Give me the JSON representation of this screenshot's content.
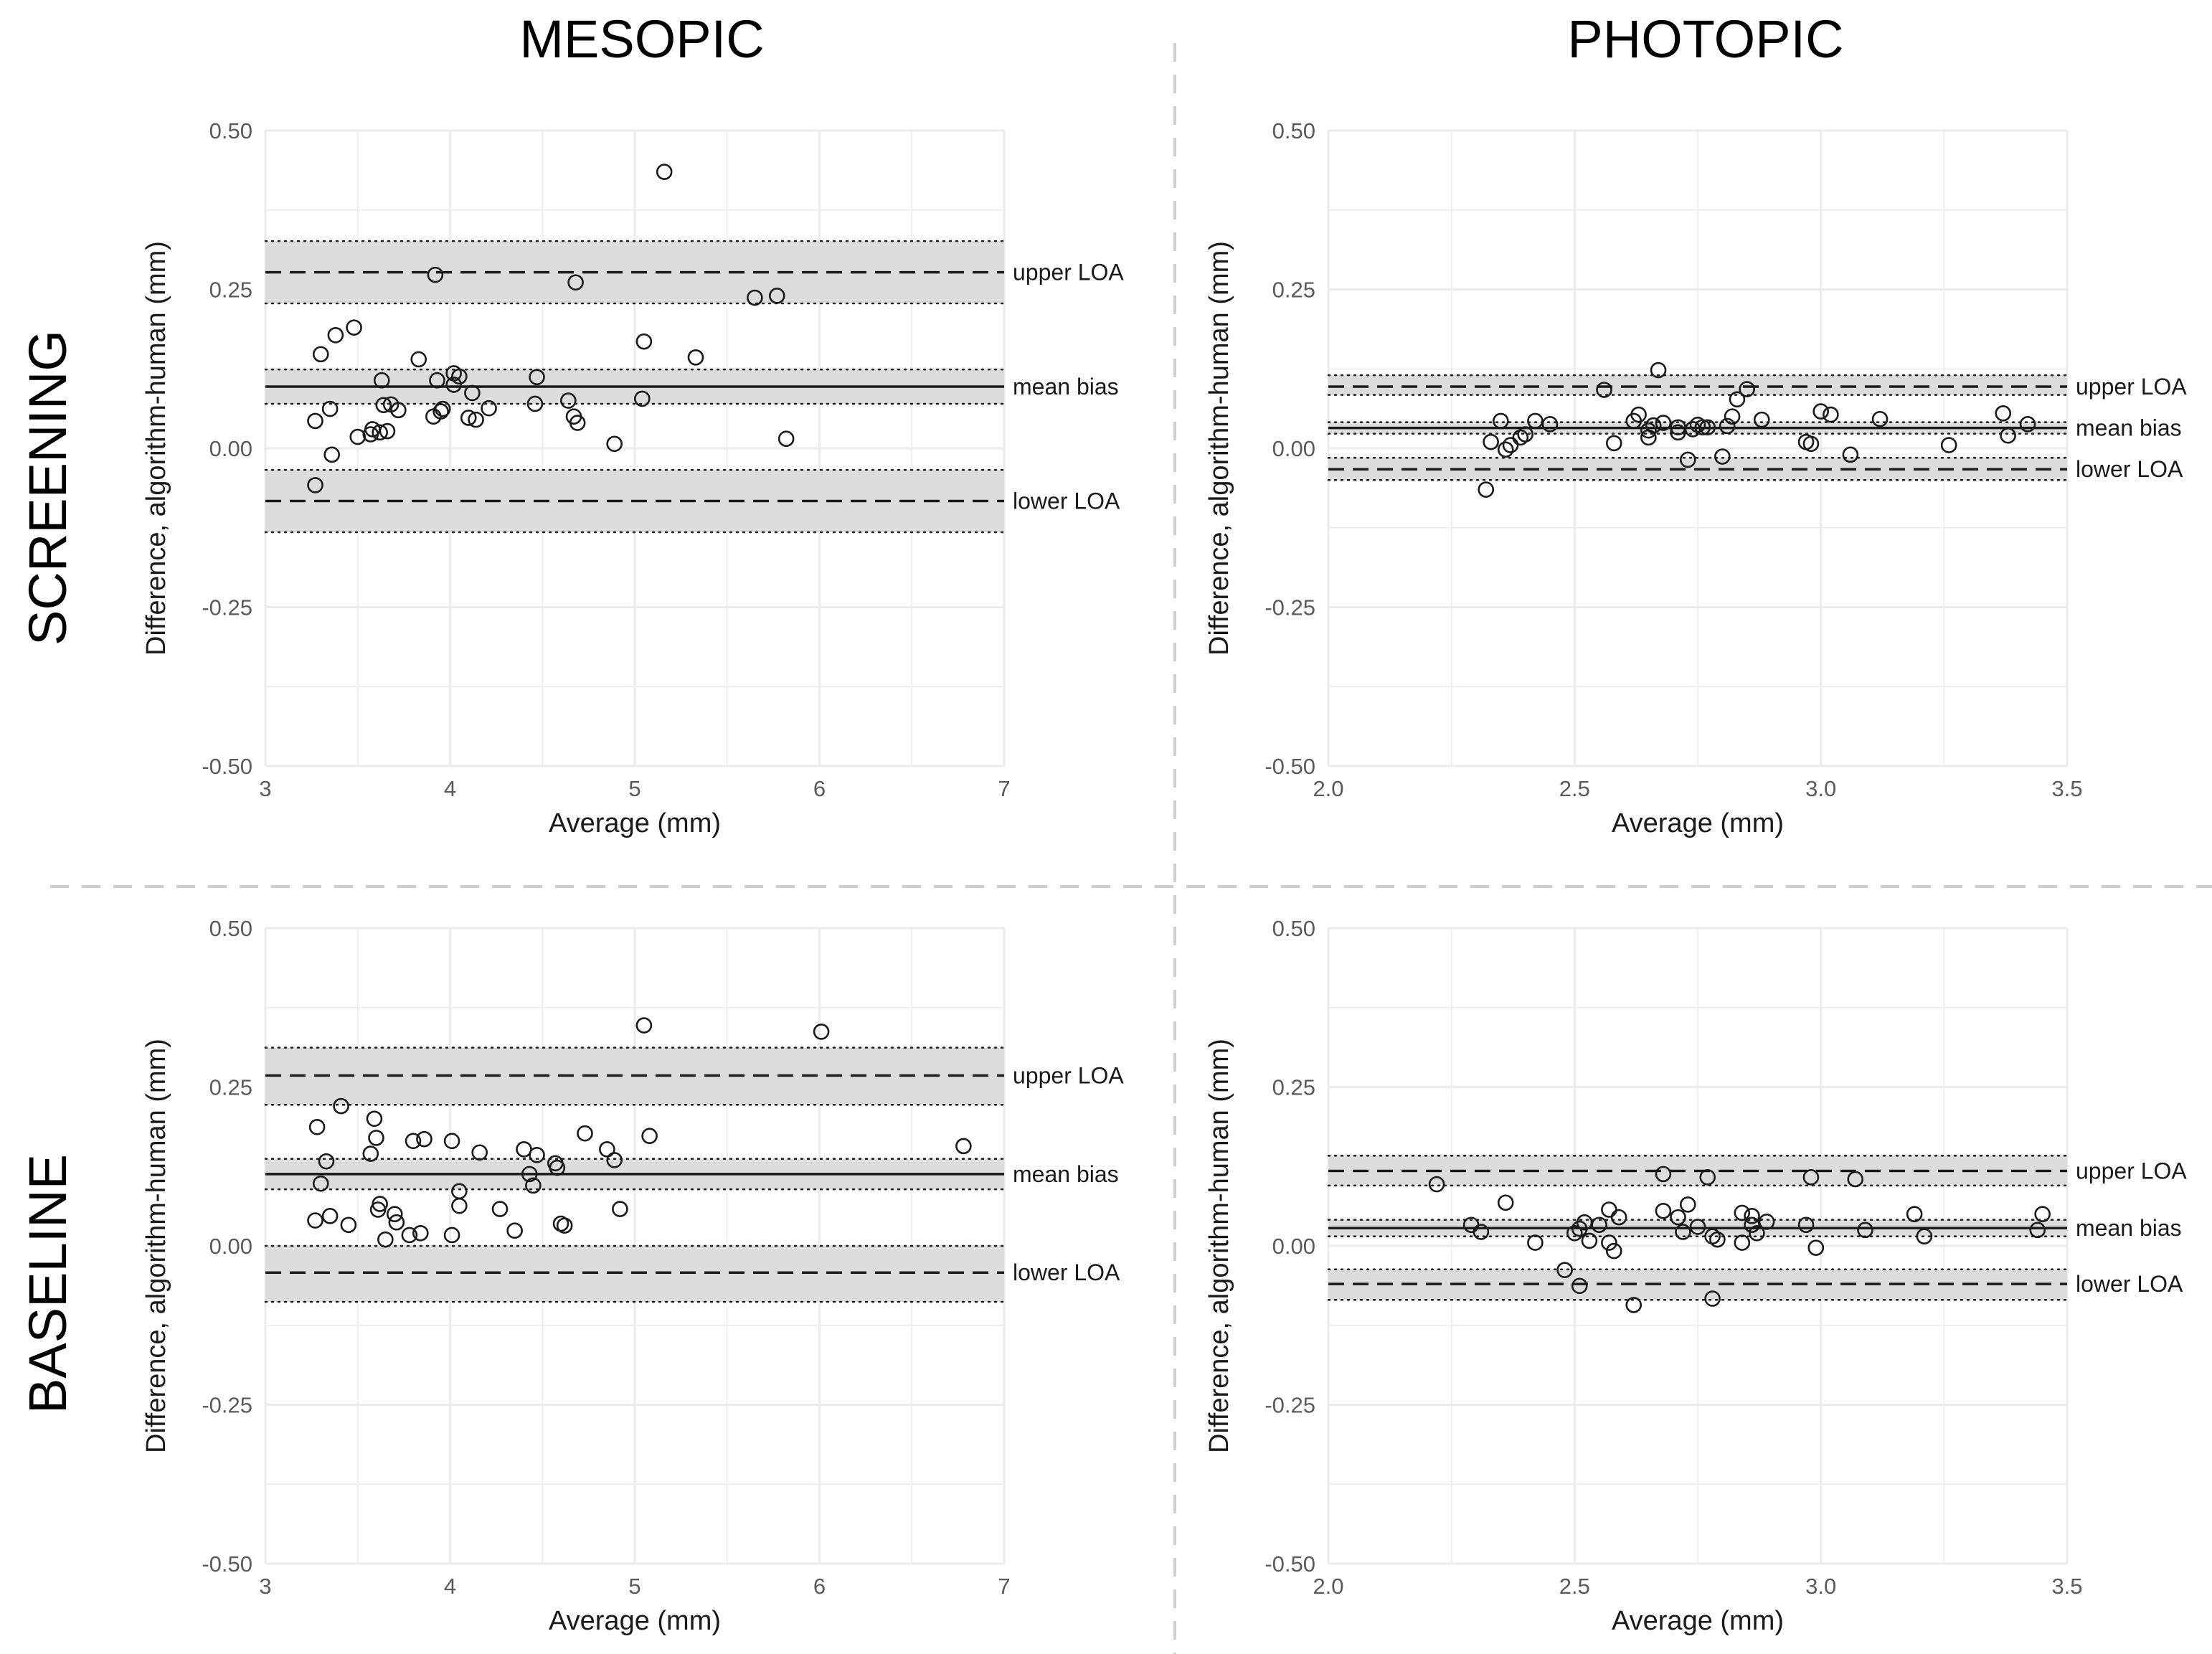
{
  "column_titles": [
    "MESOPIC",
    "PHOTOPIC"
  ],
  "row_titles": [
    "SCREENING",
    "BASELINE"
  ],
  "colors": {
    "background": "#ffffff",
    "grid": "#ebebeb",
    "band": "#dcdcdc",
    "line": "#1a1a1a",
    "separator": "#cfcfcf"
  },
  "chart_data": [
    {
      "id": "screening-mesopic",
      "type": "scatter",
      "row": "SCREENING",
      "column": "MESOPIC",
      "xlabel": "Average (mm)",
      "ylabel": "Difference, algorithm-human (mm)",
      "xlim": [
        3,
        7
      ],
      "ylim": [
        -0.5,
        0.5
      ],
      "xticks": [
        3,
        4,
        5,
        6,
        7
      ],
      "xtick_labels": [
        "3",
        "4",
        "5",
        "6",
        "7"
      ],
      "yticks": [
        -0.5,
        -0.25,
        0,
        0.25,
        0.5
      ],
      "ytick_labels": [
        "-0.50",
        "-0.25",
        "0.00",
        "0.25",
        "0.50"
      ],
      "lines": {
        "upper_loa": {
          "label": "upper LOA",
          "value": 0.277,
          "ci": [
            0.228,
            0.326
          ]
        },
        "mean_bias": {
          "label": "mean bias",
          "value": 0.097,
          "ci": [
            0.07,
            0.124
          ]
        },
        "lower_loa": {
          "label": "lower LOA",
          "value": -0.083,
          "ci": [
            -0.132,
            -0.034
          ]
        }
      },
      "points": [
        [
          3.27,
          0.043
        ],
        [
          3.27,
          -0.058
        ],
        [
          3.3,
          0.148
        ],
        [
          3.35,
          0.062
        ],
        [
          3.36,
          -0.01
        ],
        [
          3.38,
          0.178
        ],
        [
          3.48,
          0.19
        ],
        [
          3.5,
          0.018
        ],
        [
          3.57,
          0.022
        ],
        [
          3.58,
          0.03
        ],
        [
          3.62,
          0.025
        ],
        [
          3.63,
          0.107
        ],
        [
          3.64,
          0.068
        ],
        [
          3.66,
          0.027
        ],
        [
          3.68,
          0.069
        ],
        [
          3.72,
          0.06
        ],
        [
          3.83,
          0.14
        ],
        [
          3.91,
          0.05
        ],
        [
          3.92,
          0.273
        ],
        [
          3.93,
          0.107
        ],
        [
          3.95,
          0.058
        ],
        [
          3.96,
          0.062
        ],
        [
          4.02,
          0.1
        ],
        [
          4.02,
          0.118
        ],
        [
          4.05,
          0.113
        ],
        [
          4.1,
          0.048
        ],
        [
          4.12,
          0.087
        ],
        [
          4.14,
          0.045
        ],
        [
          4.21,
          0.063
        ],
        [
          4.46,
          0.07
        ],
        [
          4.47,
          0.112
        ],
        [
          4.64,
          0.075
        ],
        [
          4.67,
          0.05
        ],
        [
          4.68,
          0.261
        ],
        [
          4.69,
          0.04
        ],
        [
          4.89,
          0.007
        ],
        [
          5.04,
          0.078
        ],
        [
          5.05,
          0.168
        ],
        [
          5.16,
          0.435
        ],
        [
          5.33,
          0.143
        ],
        [
          5.65,
          0.237
        ],
        [
          5.77,
          0.24
        ],
        [
          5.82,
          0.015
        ]
      ]
    },
    {
      "id": "screening-photopic",
      "type": "scatter",
      "row": "SCREENING",
      "column": "PHOTOPIC",
      "xlabel": "Average (mm)",
      "ylabel": "Difference, algorithm-human (mm)",
      "xlim": [
        2.0,
        3.5
      ],
      "ylim": [
        -0.5,
        0.5
      ],
      "xticks": [
        2.0,
        2.5,
        3.0,
        3.5
      ],
      "xtick_labels": [
        "2.0",
        "2.5",
        "3.0",
        "3.5"
      ],
      "yticks": [
        -0.5,
        -0.25,
        0,
        0.25,
        0.5
      ],
      "ytick_labels": [
        "-0.50",
        "-0.25",
        "0.00",
        "0.25",
        "0.50"
      ],
      "lines": {
        "upper_loa": {
          "label": "upper LOA",
          "value": 0.097,
          "ci": [
            0.084,
            0.115
          ]
        },
        "mean_bias": {
          "label": "mean bias",
          "value": 0.032,
          "ci": [
            0.023,
            0.041
          ]
        },
        "lower_loa": {
          "label": "lower LOA",
          "value": -0.033,
          "ci": [
            -0.05,
            -0.015
          ]
        }
      },
      "points": [
        [
          2.32,
          -0.065
        ],
        [
          2.33,
          0.01
        ],
        [
          2.35,
          0.043
        ],
        [
          2.36,
          -0.002
        ],
        [
          2.37,
          0.005
        ],
        [
          2.39,
          0.017
        ],
        [
          2.4,
          0.022
        ],
        [
          2.42,
          0.043
        ],
        [
          2.45,
          0.038
        ],
        [
          2.56,
          0.092
        ],
        [
          2.58,
          0.008
        ],
        [
          2.62,
          0.043
        ],
        [
          2.63,
          0.053
        ],
        [
          2.65,
          0.017
        ],
        [
          2.65,
          0.028
        ],
        [
          2.66,
          0.036
        ],
        [
          2.67,
          0.123
        ],
        [
          2.68,
          0.04
        ],
        [
          2.71,
          0.033
        ],
        [
          2.71,
          0.025
        ],
        [
          2.73,
          -0.018
        ],
        [
          2.74,
          0.03
        ],
        [
          2.75,
          0.037
        ],
        [
          2.76,
          0.033
        ],
        [
          2.77,
          0.033
        ],
        [
          2.8,
          -0.013
        ],
        [
          2.81,
          0.035
        ],
        [
          2.82,
          0.05
        ],
        [
          2.83,
          0.077
        ],
        [
          2.85,
          0.093
        ],
        [
          2.88,
          0.045
        ],
        [
          2.97,
          0.01
        ],
        [
          2.98,
          0.007
        ],
        [
          3.0,
          0.058
        ],
        [
          3.02,
          0.053
        ],
        [
          3.06,
          -0.01
        ],
        [
          3.12,
          0.046
        ],
        [
          3.26,
          0.005
        ],
        [
          3.37,
          0.055
        ],
        [
          3.38,
          0.02
        ],
        [
          3.42,
          0.038
        ]
      ]
    },
    {
      "id": "baseline-mesopic",
      "type": "scatter",
      "row": "BASELINE",
      "column": "MESOPIC",
      "xlabel": "Average (mm)",
      "ylabel": "Difference, algorithm-human (mm)",
      "xlim": [
        3,
        7
      ],
      "ylim": [
        -0.5,
        0.5
      ],
      "xticks": [
        3,
        4,
        5,
        6,
        7
      ],
      "xtick_labels": [
        "3",
        "4",
        "5",
        "6",
        "7"
      ],
      "yticks": [
        -0.5,
        -0.25,
        0,
        0.25,
        0.5
      ],
      "ytick_labels": [
        "-0.50",
        "-0.25",
        "0.00",
        "0.25",
        "0.50"
      ],
      "lines": {
        "upper_loa": {
          "label": "upper LOA",
          "value": 0.268,
          "ci": [
            0.222,
            0.312
          ]
        },
        "mean_bias": {
          "label": "mean bias",
          "value": 0.113,
          "ci": [
            0.089,
            0.137
          ]
        },
        "lower_loa": {
          "label": "lower LOA",
          "value": -0.042,
          "ci": [
            -0.088,
            0.0
          ]
        }
      },
      "points": [
        [
          3.27,
          0.04
        ],
        [
          3.28,
          0.187
        ],
        [
          3.3,
          0.098
        ],
        [
          3.33,
          0.133
        ],
        [
          3.35,
          0.047
        ],
        [
          3.41,
          0.22
        ],
        [
          3.45,
          0.033
        ],
        [
          3.57,
          0.145
        ],
        [
          3.59,
          0.2
        ],
        [
          3.6,
          0.17
        ],
        [
          3.61,
          0.057
        ],
        [
          3.62,
          0.066
        ],
        [
          3.65,
          0.01
        ],
        [
          3.7,
          0.05
        ],
        [
          3.71,
          0.037
        ],
        [
          3.78,
          0.017
        ],
        [
          3.8,
          0.165
        ],
        [
          3.84,
          0.02
        ],
        [
          3.86,
          0.168
        ],
        [
          4.01,
          0.017
        ],
        [
          4.01,
          0.165
        ],
        [
          4.05,
          0.086
        ],
        [
          4.05,
          0.063
        ],
        [
          4.16,
          0.147
        ],
        [
          4.27,
          0.058
        ],
        [
          4.35,
          0.024
        ],
        [
          4.4,
          0.152
        ],
        [
          4.43,
          0.113
        ],
        [
          4.45,
          0.095
        ],
        [
          4.47,
          0.143
        ],
        [
          4.57,
          0.13
        ],
        [
          4.58,
          0.123
        ],
        [
          4.6,
          0.035
        ],
        [
          4.62,
          0.032
        ],
        [
          4.73,
          0.177
        ],
        [
          4.85,
          0.152
        ],
        [
          4.89,
          0.135
        ],
        [
          4.92,
          0.058
        ],
        [
          5.05,
          0.347
        ],
        [
          5.08,
          0.173
        ],
        [
          6.01,
          0.337
        ],
        [
          6.78,
          0.157
        ]
      ]
    },
    {
      "id": "baseline-photopic",
      "type": "scatter",
      "row": "BASELINE",
      "column": "PHOTOPIC",
      "xlabel": "Average (mm)",
      "ylabel": "Difference, algorithm-human (mm)",
      "xlim": [
        2.0,
        3.5
      ],
      "ylim": [
        -0.5,
        0.5
      ],
      "xticks": [
        2.0,
        2.5,
        3.0,
        3.5
      ],
      "xtick_labels": [
        "2.0",
        "2.5",
        "3.0",
        "3.5"
      ],
      "yticks": [
        -0.5,
        -0.25,
        0,
        0.25,
        0.5
      ],
      "ytick_labels": [
        "-0.50",
        "-0.25",
        "0.00",
        "0.25",
        "0.50"
      ],
      "lines": {
        "upper_loa": {
          "label": "upper LOA",
          "value": 0.118,
          "ci": [
            0.095,
            0.142
          ]
        },
        "mean_bias": {
          "label": "mean bias",
          "value": 0.028,
          "ci": [
            0.015,
            0.041
          ]
        },
        "lower_loa": {
          "label": "lower LOA",
          "value": -0.06,
          "ci": [
            -0.085,
            -0.037
          ]
        }
      },
      "points": [
        [
          2.22,
          0.097
        ],
        [
          2.29,
          0.033
        ],
        [
          2.31,
          0.022
        ],
        [
          2.36,
          0.068
        ],
        [
          2.42,
          0.005
        ],
        [
          2.48,
          -0.038
        ],
        [
          2.5,
          0.02
        ],
        [
          2.51,
          0.027
        ],
        [
          2.51,
          -0.063
        ],
        [
          2.52,
          0.037
        ],
        [
          2.53,
          0.008
        ],
        [
          2.55,
          0.033
        ],
        [
          2.57,
          0.057
        ],
        [
          2.57,
          0.005
        ],
        [
          2.58,
          -0.008
        ],
        [
          2.59,
          0.045
        ],
        [
          2.62,
          -0.093
        ],
        [
          2.68,
          0.113
        ],
        [
          2.68,
          0.055
        ],
        [
          2.71,
          0.045
        ],
        [
          2.72,
          0.022
        ],
        [
          2.73,
          0.065
        ],
        [
          2.75,
          0.03
        ],
        [
          2.77,
          0.108
        ],
        [
          2.78,
          0.015
        ],
        [
          2.78,
          -0.083
        ],
        [
          2.79,
          0.01
        ],
        [
          2.84,
          0.052
        ],
        [
          2.84,
          0.005
        ],
        [
          2.86,
          0.033
        ],
        [
          2.86,
          0.047
        ],
        [
          2.87,
          0.02
        ],
        [
          2.89,
          0.038
        ],
        [
          2.97,
          0.033
        ],
        [
          2.98,
          0.108
        ],
        [
          2.99,
          -0.003
        ],
        [
          3.07,
          0.105
        ],
        [
          3.09,
          0.025
        ],
        [
          3.19,
          0.05
        ],
        [
          3.21,
          0.015
        ],
        [
          3.44,
          0.025
        ],
        [
          3.45,
          0.05
        ]
      ]
    }
  ]
}
